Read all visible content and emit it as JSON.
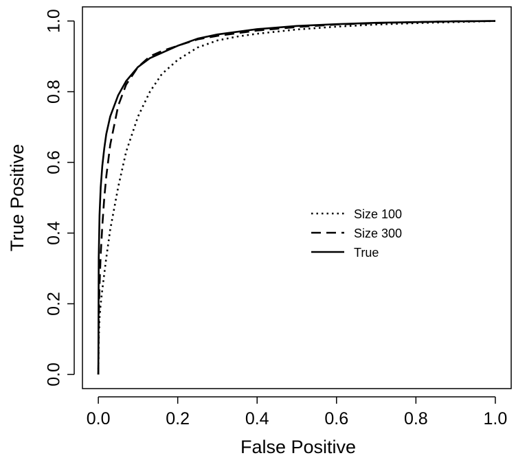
{
  "chart_data": {
    "type": "line",
    "title": "",
    "xlabel": "False Positive",
    "ylabel": "True Positive",
    "xlim": [
      -0.04,
      1.04
    ],
    "ylim": [
      -0.04,
      1.04
    ],
    "xticks": [
      0.0,
      0.2,
      0.4,
      0.6,
      0.8,
      1.0
    ],
    "yticks": [
      0.0,
      0.2,
      0.4,
      0.6,
      0.8,
      1.0
    ],
    "xtick_labels": [
      "0.0",
      "0.2",
      "0.4",
      "0.6",
      "0.8",
      "1.0"
    ],
    "ytick_labels": [
      "0.0",
      "0.2",
      "0.4",
      "0.6",
      "0.8",
      "1.0"
    ],
    "grid": false,
    "legend_position": "center-right",
    "series": [
      {
        "name": "Size 100",
        "style": "dotted",
        "x": [
          0,
          0.001,
          0.003,
          0.006,
          0.01,
          0.02,
          0.03,
          0.05,
          0.07,
          0.1,
          0.13,
          0.16,
          0.2,
          0.25,
          0.3,
          0.35,
          0.4,
          0.5,
          0.6,
          0.7,
          0.8,
          0.9,
          1.0
        ],
        "y": [
          0,
          0.1,
          0.16,
          0.2,
          0.24,
          0.33,
          0.41,
          0.53,
          0.63,
          0.73,
          0.8,
          0.85,
          0.89,
          0.925,
          0.945,
          0.956,
          0.964,
          0.976,
          0.984,
          0.99,
          0.994,
          0.997,
          1.0
        ]
      },
      {
        "name": "Size 300",
        "style": "dashed",
        "x": [
          0,
          0.001,
          0.003,
          0.006,
          0.01,
          0.015,
          0.02,
          0.03,
          0.05,
          0.07,
          0.1,
          0.13,
          0.16,
          0.2,
          0.25,
          0.3,
          0.4,
          0.5,
          0.6,
          0.7,
          0.8,
          0.9,
          1.0
        ],
        "y": [
          0,
          0.15,
          0.25,
          0.34,
          0.42,
          0.5,
          0.56,
          0.65,
          0.76,
          0.82,
          0.87,
          0.9,
          0.915,
          0.93,
          0.948,
          0.958,
          0.973,
          0.983,
          0.99,
          0.994,
          0.997,
          0.999,
          1.0
        ]
      },
      {
        "name": "True",
        "style": "solid",
        "x": [
          0,
          0.001,
          0.003,
          0.006,
          0.01,
          0.015,
          0.02,
          0.03,
          0.05,
          0.07,
          0.1,
          0.13,
          0.16,
          0.2,
          0.25,
          0.3,
          0.4,
          0.5,
          0.6,
          0.7,
          0.8,
          0.9,
          1.0
        ],
        "y": [
          0,
          0.33,
          0.45,
          0.53,
          0.59,
          0.64,
          0.68,
          0.73,
          0.79,
          0.83,
          0.87,
          0.895,
          0.91,
          0.93,
          0.95,
          0.962,
          0.977,
          0.986,
          0.991,
          0.995,
          0.997,
          0.999,
          1.0
        ]
      }
    ]
  }
}
